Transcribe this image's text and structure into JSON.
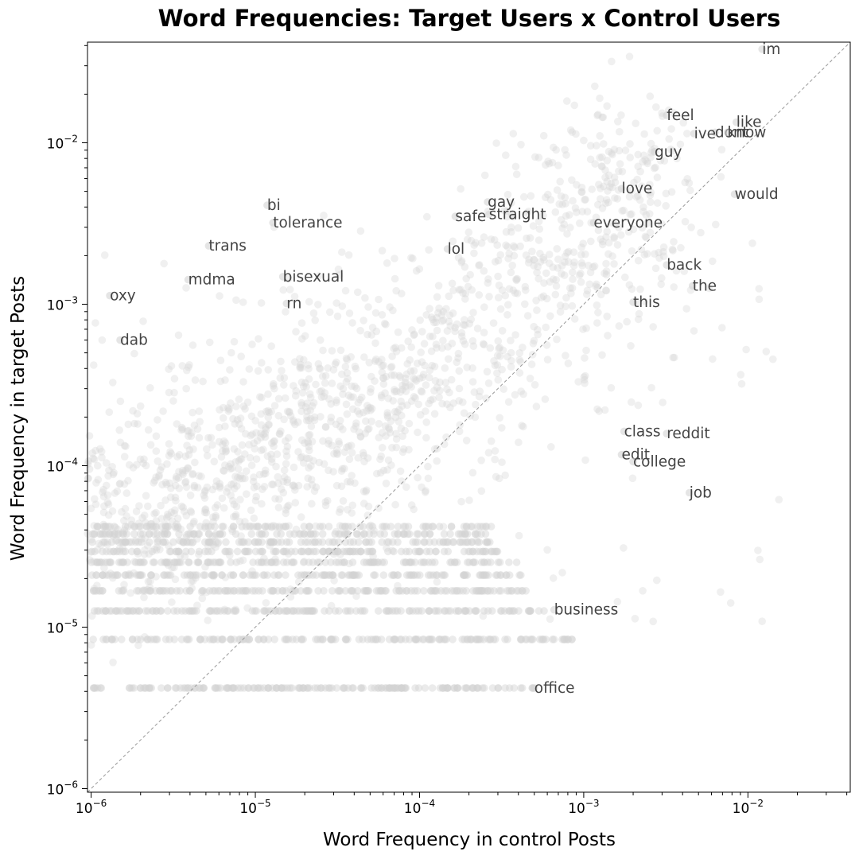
{
  "chart_data": {
    "type": "scatter",
    "title": "Word Frequencies: Target Users x Control Users",
    "xlabel": "Word Frequency in control Posts",
    "ylabel": "Word Frequency in target Posts",
    "x_scale": "log",
    "y_scale": "log",
    "xlim": [
      9.5e-07,
      0.042
    ],
    "ylim": [
      9.5e-07,
      0.042
    ],
    "x_ticks": [
      {
        "value": 1e-06,
        "base": "10",
        "exp": "−6"
      },
      {
        "value": 1e-05,
        "base": "10",
        "exp": "−5"
      },
      {
        "value": 0.0001,
        "base": "10",
        "exp": "−4"
      },
      {
        "value": 0.001,
        "base": "10",
        "exp": "−3"
      },
      {
        "value": 0.01,
        "base": "10",
        "exp": "−2"
      }
    ],
    "y_ticks": [
      {
        "value": 1e-06,
        "base": "10",
        "exp": "−6"
      },
      {
        "value": 1e-05,
        "base": "10",
        "exp": "−5"
      },
      {
        "value": 0.0001,
        "base": "10",
        "exp": "−4"
      },
      {
        "value": 0.001,
        "base": "10",
        "exp": "−3"
      },
      {
        "value": 0.01,
        "base": "10",
        "exp": "−2"
      }
    ],
    "reference_line": {
      "type": "y=x",
      "style": "dashed",
      "color": "#999999"
    },
    "grid": false,
    "point_color": "#d3d3d3",
    "labeled_words": [
      {
        "word": "im",
        "x": 0.0122,
        "y": 0.038
      },
      {
        "word": "feel",
        "x": 0.0032,
        "y": 0.0148
      },
      {
        "word": "like",
        "x": 0.0085,
        "y": 0.0134
      },
      {
        "word": "dont",
        "x": 0.0063,
        "y": 0.0116
      },
      {
        "word": "know",
        "x": 0.0075,
        "y": 0.0116
      },
      {
        "word": "ive",
        "x": 0.0047,
        "y": 0.0114
      },
      {
        "word": "guy",
        "x": 0.0027,
        "y": 0.0088
      },
      {
        "word": "would",
        "x": 0.0083,
        "y": 0.0048
      },
      {
        "word": "love",
        "x": 0.0017,
        "y": 0.0052
      },
      {
        "word": "bi",
        "x": 1.18e-05,
        "y": 0.0041
      },
      {
        "word": "tolerance",
        "x": 1.28e-05,
        "y": 0.0032
      },
      {
        "word": "gay",
        "x": 0.00026,
        "y": 0.0043
      },
      {
        "word": "safe",
        "x": 0.000165,
        "y": 0.0035
      },
      {
        "word": "straight",
        "x": 0.000265,
        "y": 0.0036
      },
      {
        "word": "everyone",
        "x": 0.00115,
        "y": 0.0032
      },
      {
        "word": "trans",
        "x": 5.2e-06,
        "y": 0.0023
      },
      {
        "word": "lol",
        "x": 0.000148,
        "y": 0.0022
      },
      {
        "word": "back",
        "x": 0.0032,
        "y": 0.00175
      },
      {
        "word": "bisexual",
        "x": 1.47e-05,
        "y": 0.00148
      },
      {
        "word": "mdma",
        "x": 3.9e-06,
        "y": 0.00142
      },
      {
        "word": "the",
        "x": 0.0046,
        "y": 0.0013
      },
      {
        "word": "oxy",
        "x": 1.3e-06,
        "y": 0.00113
      },
      {
        "word": "rn",
        "x": 1.55e-05,
        "y": 0.00101
      },
      {
        "word": "this",
        "x": 0.002,
        "y": 0.00103
      },
      {
        "word": "dab",
        "x": 1.5e-06,
        "y": 0.0006
      },
      {
        "word": "class",
        "x": 0.00176,
        "y": 0.000163
      },
      {
        "word": "reddit",
        "x": 0.0032,
        "y": 0.000158
      },
      {
        "word": "edit",
        "x": 0.0017,
        "y": 0.000117
      },
      {
        "word": "college",
        "x": 0.002,
        "y": 0.000106
      },
      {
        "word": "job",
        "x": 0.0044,
        "y": 6.8e-05
      },
      {
        "word": "business",
        "x": 0.00066,
        "y": 1.28e-05
      },
      {
        "word": "office",
        "x": 0.0005,
        "y": 4.2e-06
      }
    ]
  }
}
